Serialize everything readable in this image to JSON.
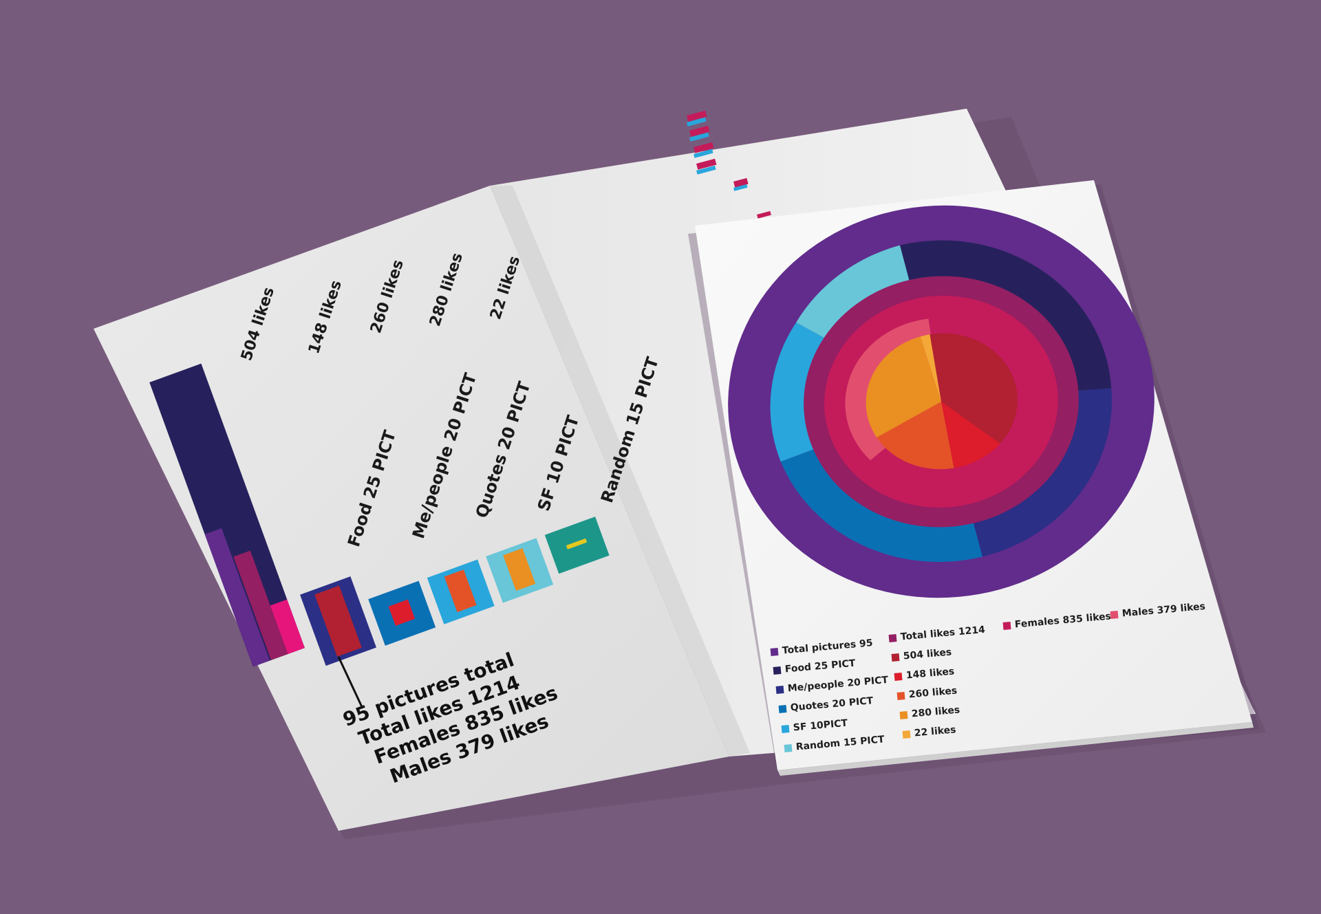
{
  "colors": {
    "background": "#775b7c",
    "total_pictures": "#612c8c",
    "food": "#26215c",
    "me_people": "#2b2f86",
    "quotes": "#0a70b4",
    "sf": "#29a6dc",
    "random": "#68c6d8",
    "total_likes": "#941f63",
    "likes_504": "#b12131",
    "likes_148": "#dd1c2c",
    "likes_260": "#e35327",
    "likes_280": "#ea8f21",
    "likes_22": "#f3a838",
    "females": "#c41b5b",
    "males": "#e24f6e",
    "teal": "#1d968a"
  },
  "left_page": {
    "likes_labels": [
      "504 likes",
      "148 likes",
      "260 likes",
      "280 likes",
      "22 likes"
    ],
    "category_labels": [
      "Food 25 PICT",
      "Me/people 20 PICT",
      "Quotes 20 PICT",
      "SF 10 PICT",
      "Random 15 PICT"
    ],
    "summary": [
      "95 pictures total",
      "Total likes 1214",
      "Females 835 likes",
      "Males 379 likes"
    ]
  },
  "legend": {
    "col1": [
      "Total pictures 95",
      "Food 25 PICT",
      "Me/people 20 PICT",
      "Quotes 20 PICT",
      "SF 10PICT",
      "Random 15 PICT"
    ],
    "col2": [
      "Total likes 1214",
      "504 likes",
      "148 likes",
      "260 likes",
      "280 likes",
      "22 likes"
    ],
    "col3": [
      "Females 835 likes"
    ],
    "col4": [
      "Males 379 likes"
    ]
  }
}
